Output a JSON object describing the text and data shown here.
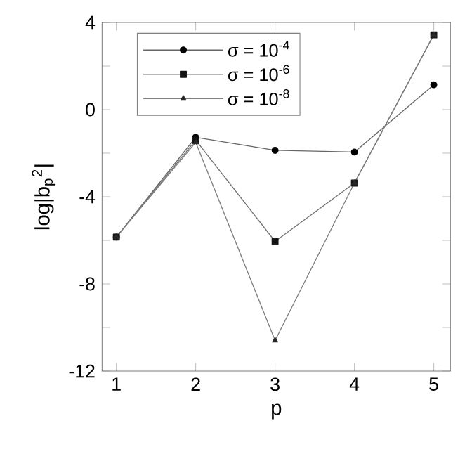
{
  "chart_data": {
    "type": "line",
    "xlabel": "p",
    "ylabel": "log|b$_{p}$$^{2}$|",
    "x": [
      1,
      2,
      3,
      4,
      5
    ],
    "xlim": [
      0.82,
      5.21
    ],
    "xticks": [
      1,
      2,
      3,
      4,
      5
    ],
    "ylim": [
      -12,
      4
    ],
    "yticks": [
      -12,
      {
        "value": -10,
        "label": null
      },
      -8,
      {
        "value": -6,
        "label": null
      },
      -4,
      {
        "value": -2,
        "label": null
      },
      0,
      {
        "value": 2,
        "label": null
      },
      4
    ],
    "series": [
      {
        "name": "σ = 10$^{-4}$",
        "color": "#000000",
        "marker": "circle",
        "values": [
          -5.85,
          -1.27,
          -1.87,
          -1.95,
          1.14
        ]
      },
      {
        "name": "σ = 10$^{-6}$",
        "color": "#141414",
        "marker": "square",
        "values": [
          -5.85,
          -1.4,
          -6.05,
          -3.37,
          3.43
        ]
      },
      {
        "name": "σ = 10$^{-8}$",
        "color": "#282828",
        "marker": "triangle",
        "values": [
          -5.85,
          -1.5,
          -10.6,
          -3.37,
          3.43
        ]
      }
    ],
    "legend": "top left",
    "grid": false,
    "line_style": "solid"
  }
}
